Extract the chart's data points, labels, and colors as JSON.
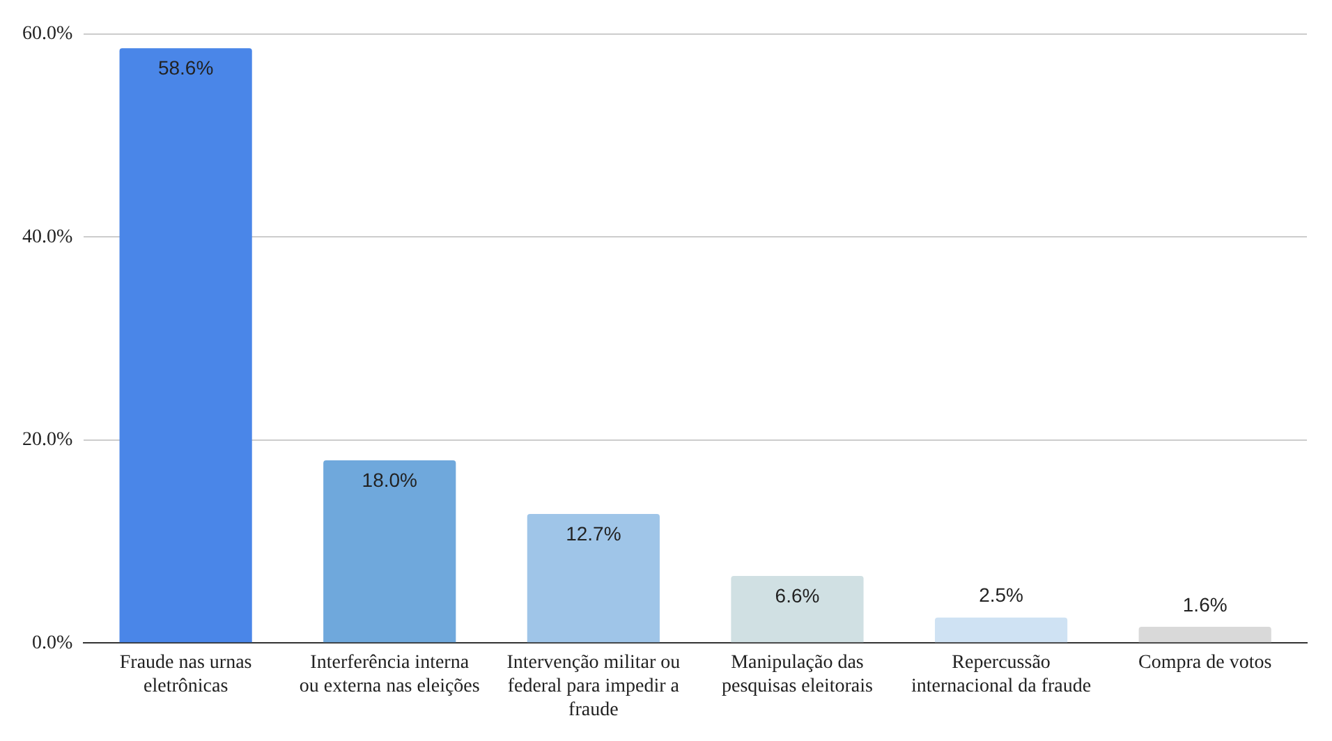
{
  "chart_data": {
    "type": "bar",
    "categories": [
      "Fraude nas urnas eletrônicas",
      "Interferência interna ou externa nas eleições",
      "Intervenção militar ou federal para impedir a fraude",
      "Manipulação das pesquisas eleitorais",
      "Repercussão internacional da fraude",
      "Compra de votos"
    ],
    "values": [
      58.6,
      18.0,
      12.7,
      6.6,
      2.5,
      1.6
    ],
    "colors": [
      "#4a86e8",
      "#6fa8dc",
      "#9fc5e8",
      "#d0e0e3",
      "#cfe2f3",
      "#d9d9d9"
    ],
    "value_labels": [
      "58.6%",
      "18.0%",
      "12.7%",
      "6.6%",
      "2.5%",
      "1.6%"
    ],
    "ylim": [
      0,
      60
    ],
    "yticks": [
      {
        "value": 0,
        "label": "0.0%"
      },
      {
        "value": 20,
        "label": "20.0%"
      },
      {
        "value": 40,
        "label": "40.0%"
      },
      {
        "value": 60,
        "label": "60.0%"
      }
    ],
    "grid": "y"
  }
}
